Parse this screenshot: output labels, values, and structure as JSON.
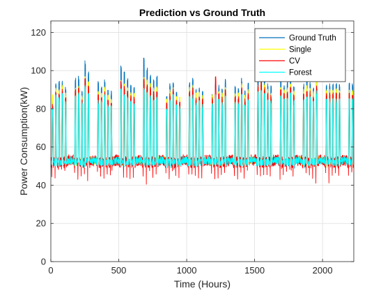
{
  "chart_data": {
    "type": "line",
    "title": "Prediction vs Ground Truth",
    "xlabel": "Time (Hours)",
    "ylabel": "Power Consumption(kW)",
    "xlim": [
      0,
      2230
    ],
    "ylim": [
      0,
      126
    ],
    "xticks": [
      0,
      500,
      1000,
      1500,
      2000
    ],
    "yticks": [
      0,
      20,
      40,
      60,
      80,
      100,
      120
    ],
    "grid": true,
    "legend_position": "top-right",
    "series": [
      {
        "name": "Ground Truth",
        "color": "#0072bd"
      },
      {
        "name": "Single",
        "color": "#ffff00"
      },
      {
        "name": "CV",
        "color": "#ff0000"
      },
      {
        "name": "Forest",
        "color": "#00ffff"
      }
    ],
    "pattern": {
      "hours_per_day": 24,
      "weekday_peak_kw": 90,
      "base_kw": 52,
      "weekend_base_kw": 53,
      "weekday_peak_range_kw": [
        80,
        106
      ],
      "x_end": 2230
    },
    "peak_values": {
      "Ground Truth": [
        85,
        92,
        93,
        94,
        90,
        103,
        101,
        95,
        96,
        88,
        104,
        98,
        96,
        92,
        93,
        90,
        94,
        89,
        88,
        86,
        92,
        101,
        98,
        95,
        91,
        90,
        88,
        93,
        106,
        100,
        97,
        94,
        96,
        90,
        87,
        85,
        92,
        94,
        88,
        86,
        84,
        91,
        93,
        95,
        89,
        90,
        88,
        86,
        85,
        87,
        92,
        91,
        89,
        94,
        96,
        93,
        91,
        90,
        95,
        88,
        92,
        94,
        93,
        96,
        98,
        95,
        92,
        91,
        89,
        90,
        94,
        92,
        93,
        95,
        91,
        90,
        88,
        92,
        94,
        93,
        91,
        97,
        93,
        90,
        92
      ],
      "Single": [
        88,
        90,
        89,
        91,
        87,
        95,
        92,
        90,
        91,
        86,
        96,
        93,
        90,
        89,
        88,
        87,
        90,
        86,
        85,
        84,
        89,
        94,
        92,
        90,
        88,
        87,
        86,
        90,
        96,
        94,
        92,
        90,
        91,
        87,
        85,
        84,
        89,
        90,
        86,
        85,
        83,
        88,
        90,
        91,
        87,
        88,
        86,
        85,
        84,
        86,
        89,
        88,
        87,
        91,
        99,
        90,
        88,
        87,
        92,
        86,
        89,
        91,
        90,
        92,
        94,
        92,
        89,
        88,
        87,
        88,
        91,
        89,
        90,
        92,
        88,
        87,
        86,
        89,
        91,
        90,
        88,
        93,
        90,
        88,
        89
      ],
      "CV": [
        82,
        88,
        87,
        89,
        85,
        94,
        92,
        89,
        90,
        84,
        95,
        91,
        89,
        87,
        86,
        85,
        88,
        84,
        83,
        82,
        88,
        93,
        91,
        89,
        86,
        85,
        84,
        88,
        95,
        92,
        90,
        88,
        89,
        85,
        83,
        82,
        87,
        89,
        84,
        83,
        82,
        86,
        88,
        90,
        85,
        86,
        84,
        83,
        82,
        85,
        96,
        87,
        85,
        89,
        91,
        88,
        86,
        85,
        90,
        84,
        87,
        89,
        88,
        91,
        93,
        90,
        87,
        86,
        85,
        86,
        89,
        87,
        88,
        90,
        86,
        85,
        84,
        87,
        89,
        88,
        86,
        91,
        88,
        86,
        87
      ],
      "Forest": [
        80,
        86,
        85,
        87,
        83,
        90,
        88,
        86,
        87,
        82,
        91,
        88,
        86,
        85,
        84,
        83,
        86,
        82,
        81,
        80,
        85,
        89,
        87,
        85,
        83,
        82,
        81,
        85,
        90,
        88,
        86,
        84,
        85,
        82,
        80,
        79,
        84,
        86,
        81,
        80,
        79,
        83,
        85,
        86,
        82,
        83,
        81,
        80,
        79,
        82,
        86,
        84,
        82,
        86,
        88,
        85,
        83,
        82,
        87,
        81,
        84,
        86,
        85,
        88,
        89,
        87,
        84,
        83,
        82,
        83,
        86,
        84,
        85,
        87,
        83,
        82,
        81,
        84,
        86,
        85,
        83,
        88,
        85,
        83,
        84
      ]
    }
  }
}
